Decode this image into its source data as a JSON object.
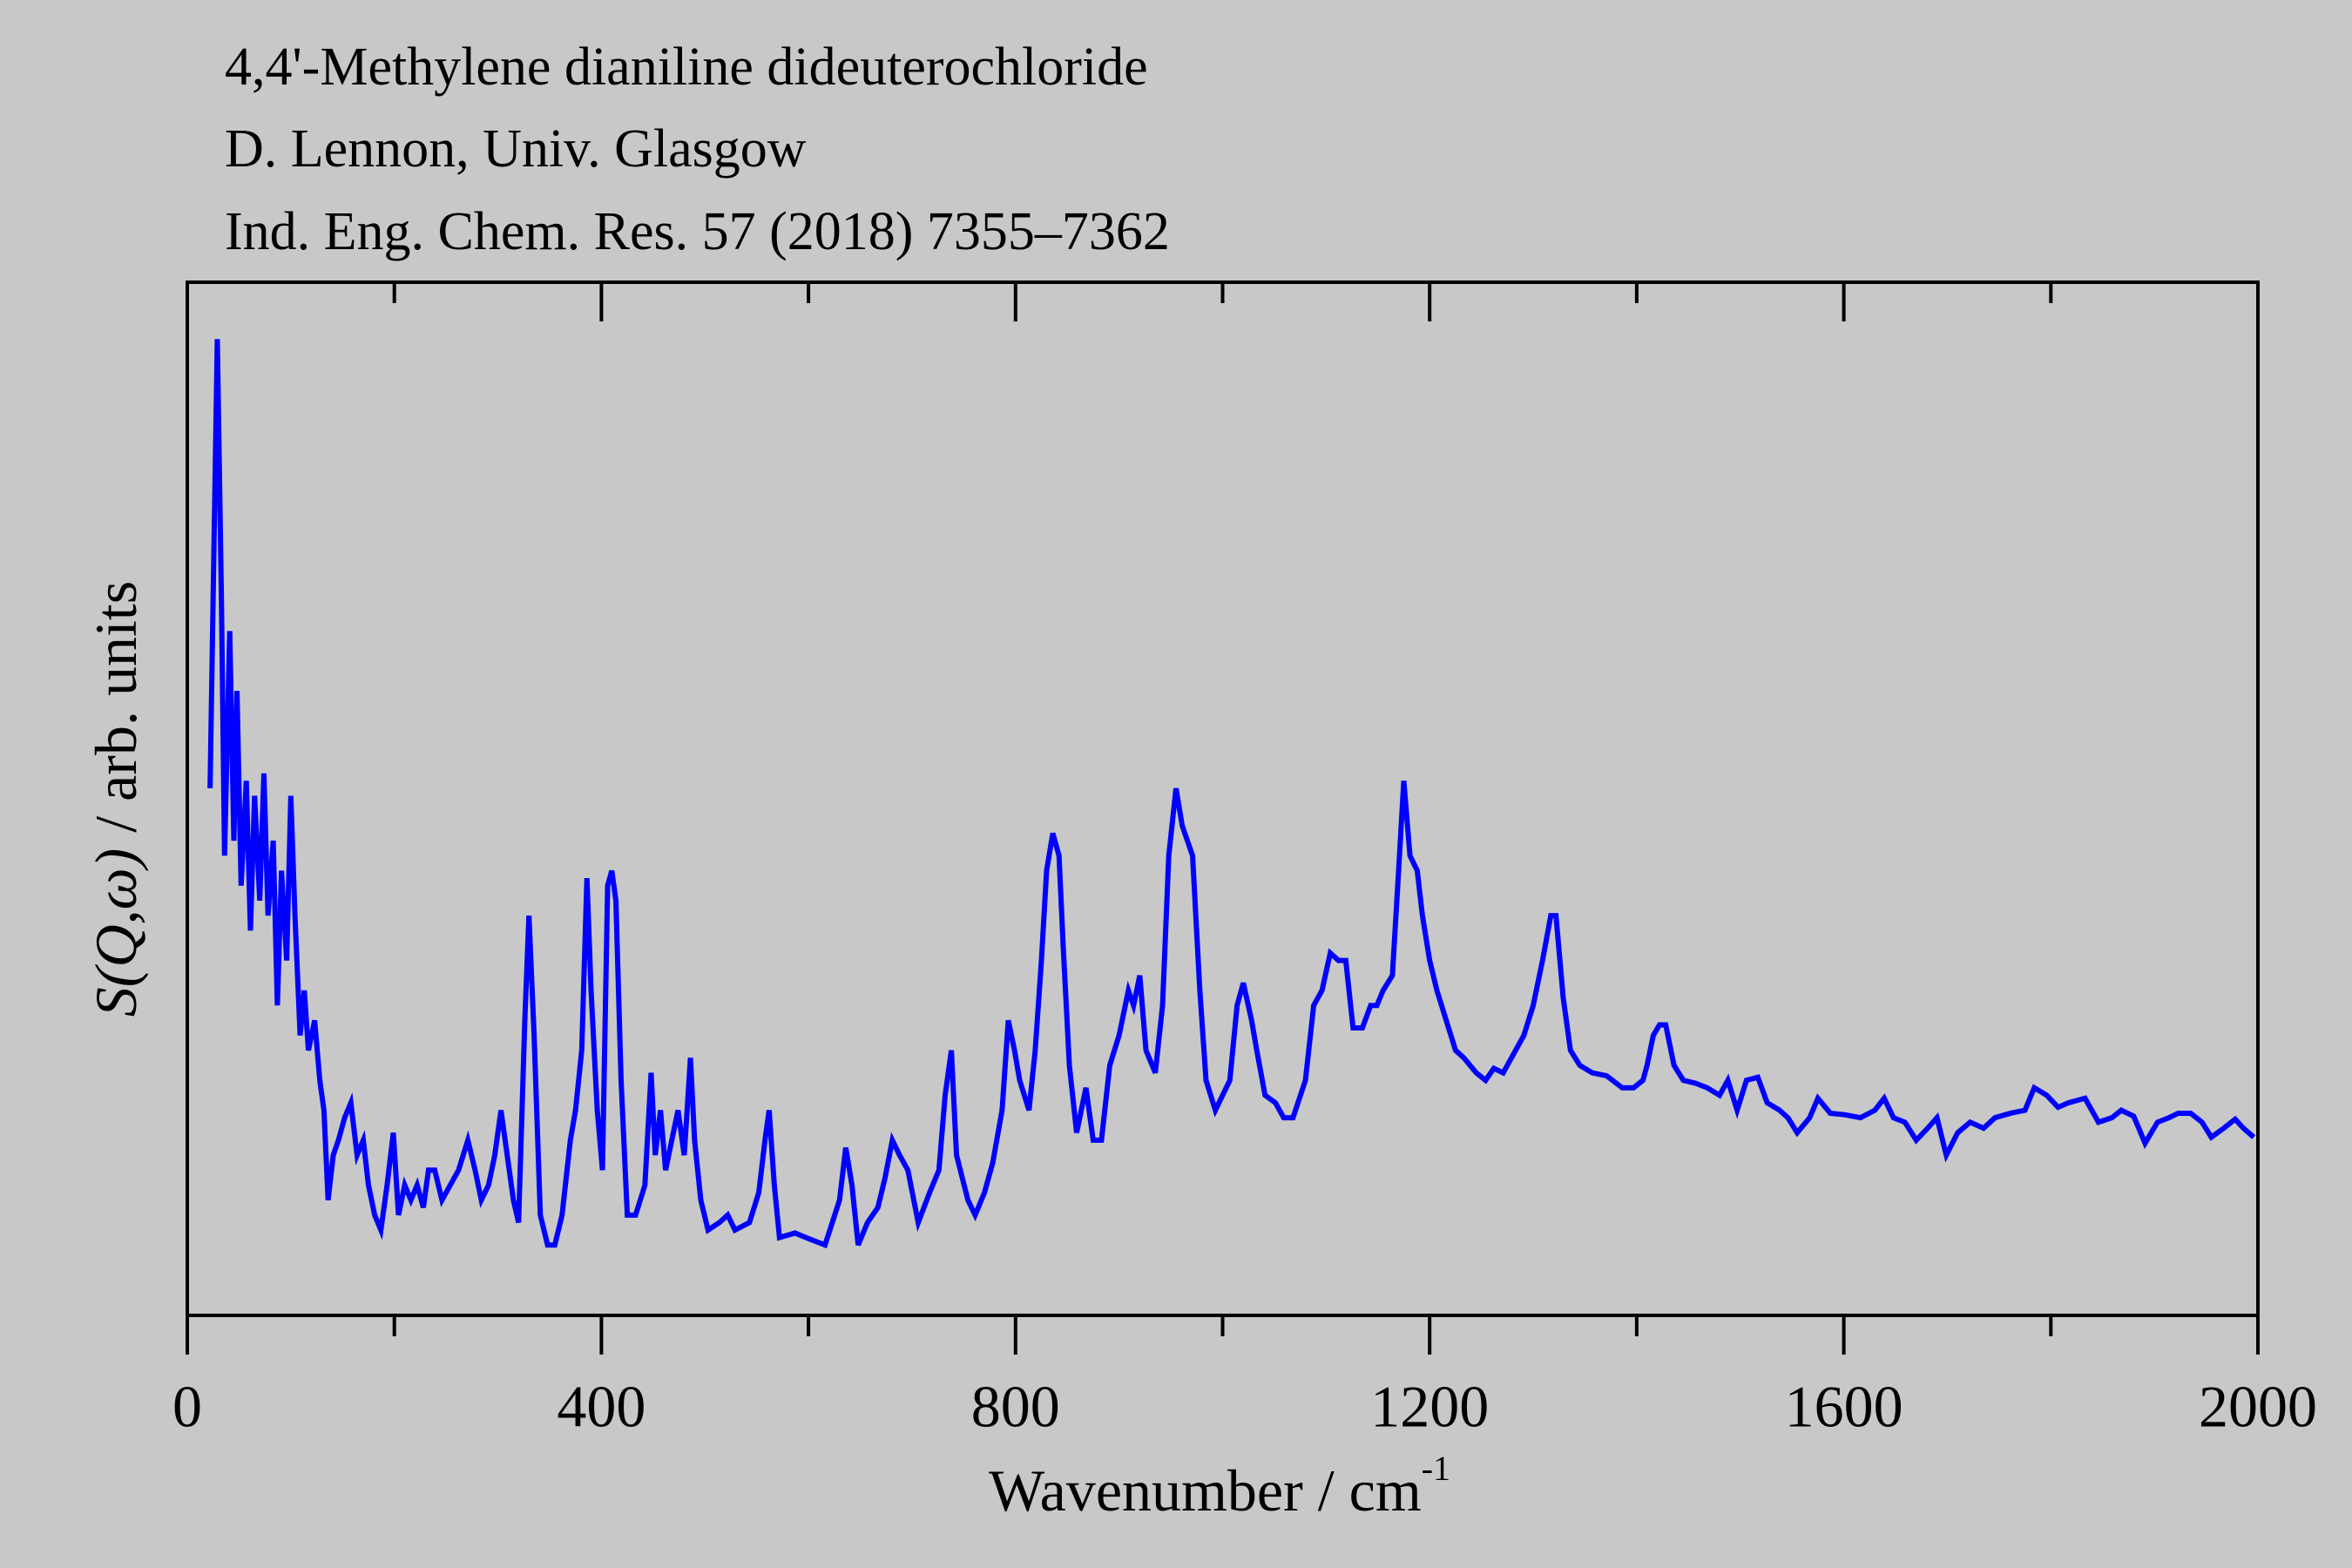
{
  "chart_data": {
    "type": "line",
    "title_lines": [
      "4,4'-Methylene dianiline dideuterochloride",
      "D. Lennon, Univ. Glasgow",
      "Ind. Eng. Chem. Res. 57 (2018) 7355–7362"
    ],
    "x_label": "Wavenumber / cm",
    "x_label_superscript": "-1",
    "y_label_symbol": "S(Q,ω)",
    "y_label_unit": "/ arb. units",
    "xlim": [
      0,
      2000
    ],
    "xticks": [
      0,
      400,
      800,
      1200,
      1600,
      2000
    ],
    "xminor_ticks": [
      200,
      600,
      1000,
      1400,
      1800
    ],
    "ylim": [
      0,
      690
    ],
    "x": [
      22,
      29,
      33,
      36,
      41,
      45,
      48,
      52,
      57,
      61,
      65,
      70,
      74,
      78,
      83,
      87,
      91,
      96,
      100,
      104,
      109,
      113,
      117,
      123,
      128,
      132,
      136,
      141,
      146,
      152,
      158,
      164,
      170,
      175,
      181,
      187,
      193,
      199,
      204,
      210,
      216,
      222,
      228,
      233,
      239,
      246,
      254,
      262,
      271,
      278,
      284,
      291,
      297,
      303,
      309,
      315,
      320,
      326,
      330,
      335,
      341,
      348,
      355,
      362,
      370,
      375,
      381,
      386,
      390,
      396,
      401,
      406,
      410,
      414,
      419,
      425,
      433,
      442,
      448,
      452,
      457,
      462,
      468,
      474,
      480,
      486,
      490,
      496,
      503,
      514,
      522,
      529,
      543,
      552,
      558,
      562,
      567,
      572,
      587,
      601,
      616,
      630,
      636,
      642,
      648,
      657,
      667,
      674,
      681,
      688,
      696,
      706,
      717,
      726,
      732,
      738,
      743,
      754,
      761,
      770,
      778,
      787,
      793,
      799,
      804,
      813,
      819,
      825,
      830,
      836,
      842,
      846,
      852,
      859,
      868,
      875,
      883,
      891,
      900,
      909,
      914,
      920,
      926,
      935,
      942,
      948,
      955,
      961,
      971,
      978,
      984,
      993,
      1000,
      1007,
      1014,
      1020,
      1028,
      1033,
      1041,
      1051,
      1059,
      1068,
      1080,
      1088,
      1096,
      1104,
      1112,
      1119,
      1126,
      1135,
      1143,
      1149,
      1155,
      1164,
      1170,
      1175,
      1181,
      1188,
      1193,
      1200,
      1207,
      1216,
      1225,
      1233,
      1245,
      1254,
      1262,
      1271,
      1283,
      1291,
      1300,
      1309,
      1317,
      1322,
      1329,
      1336,
      1345,
      1357,
      1371,
      1386,
      1397,
      1406,
      1410,
      1416,
      1422,
      1428,
      1436,
      1445,
      1457,
      1468,
      1480,
      1488,
      1497,
      1506,
      1517,
      1526,
      1538,
      1546,
      1555,
      1567,
      1575,
      1587,
      1601,
      1616,
      1630,
      1639,
      1648,
      1659,
      1670,
      1681,
      1690,
      1699,
      1710,
      1722,
      1735,
      1746,
      1761,
      1775,
      1784,
      1796,
      1807,
      1817,
      1833,
      1846,
      1859,
      1868,
      1880,
      1891,
      1903,
      1914,
      1923,
      1935,
      1946,
      1955,
      1967,
      1978,
      1986,
      1996
    ],
    "series": [
      {
        "color": "#0000ff",
        "values": [
          352,
          652,
          477,
          307,
          457,
          317,
          417,
          287,
          357,
          257,
          347,
          277,
          362,
          267,
          317,
          207,
          297,
          237,
          347,
          267,
          187,
          217,
          177,
          197,
          157,
          137,
          77,
          107,
          117,
          132,
          142,
          107,
          117,
          87,
          67,
          57,
          87,
          122,
          67,
          87,
          77,
          87,
          72,
          97,
          97,
          77,
          87,
          97,
          117,
          97,
          77,
          87,
          107,
          137,
          107,
          77,
          62,
          197,
          267,
          187,
          67,
          47,
          47,
          67,
          117,
          137,
          177,
          292,
          217,
          137,
          97,
          287,
          297,
          277,
          157,
          67,
          67,
          87,
          162,
          107,
          137,
          97,
          117,
          137,
          107,
          172,
          117,
          77,
          57,
          62,
          67,
          57,
          62,
          82,
          117,
          137,
          87,
          52,
          55,
          51,
          47,
          77,
          112,
          87,
          47,
          62,
          72,
          92,
          117,
          107,
          97,
          62,
          82,
          97,
          147,
          177,
          107,
          77,
          67,
          82,
          102,
          137,
          197,
          177,
          157,
          137,
          177,
          237,
          297,
          322,
          307,
          247,
          167,
          122,
          152,
          117,
          117,
          167,
          187,
          217,
          207,
          227,
          177,
          162,
          207,
          307,
          352,
          327,
          307,
          217,
          157,
          137,
          147,
          157,
          207,
          222,
          197,
          177,
          147,
          142,
          132,
          132,
          157,
          207,
          217,
          242,
          237,
          237,
          192,
          192,
          207,
          207,
          217,
          227,
          297,
          357,
          307,
          297,
          267,
          237,
          217,
          197,
          177,
          172,
          162,
          157,
          165,
          162,
          177,
          187,
          207,
          237,
          267,
          267,
          212,
          177,
          167,
          162,
          160,
          152,
          152,
          157,
          167,
          187,
          194,
          194,
          167,
          157,
          155,
          152,
          147,
          157,
          137,
          157,
          159,
          142,
          137,
          132,
          122,
          132,
          145,
          135,
          134,
          132,
          137,
          145,
          132,
          129,
          117,
          125,
          132,
          107,
          122,
          129,
          125,
          132,
          135,
          137,
          152,
          147,
          139,
          142,
          145,
          129,
          132,
          137,
          133,
          115,
          129,
          132,
          135,
          135,
          129,
          119,
          125,
          131,
          125,
          119
        ]
      }
    ]
  }
}
